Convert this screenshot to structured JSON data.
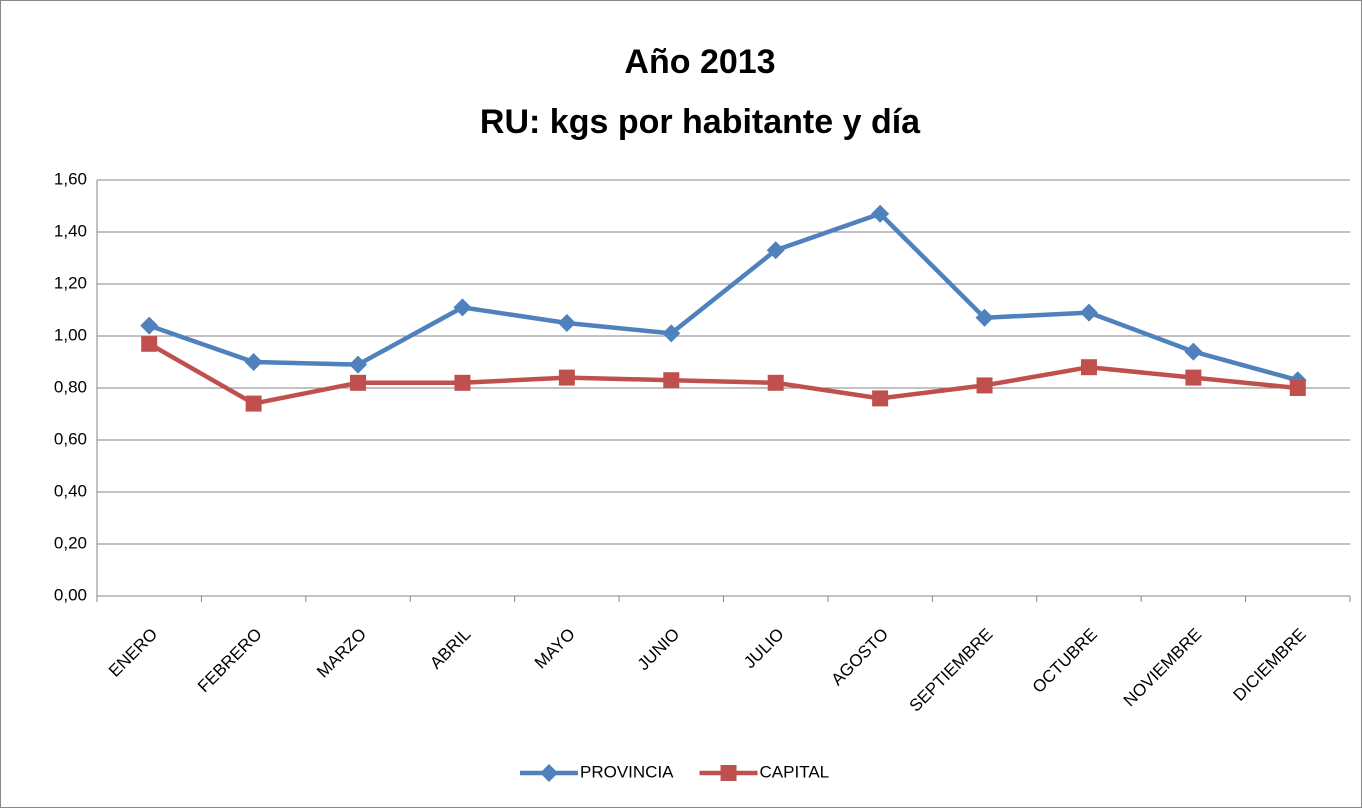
{
  "chart_data": {
    "type": "line",
    "title": [
      "Año 2013",
      "RU: kgs por habitante y día"
    ],
    "categories": [
      "ENERO",
      "FEBRERO",
      "MARZO",
      "ABRIL",
      "MAYO",
      "JUNIO",
      "JULIO",
      "AGOSTO",
      "SEPTIEMBRE",
      "OCTUBRE",
      "NOVIEMBRE",
      "DICIEMBRE"
    ],
    "series": [
      {
        "name": "PROVINCIA",
        "color": "#4f81bd",
        "marker": "diamond",
        "values": [
          1.04,
          0.9,
          0.89,
          1.11,
          1.05,
          1.01,
          1.33,
          1.47,
          1.07,
          1.09,
          0.94,
          0.83
        ]
      },
      {
        "name": "CAPITAL",
        "color": "#c0504d",
        "marker": "square",
        "values": [
          0.97,
          0.74,
          0.82,
          0.82,
          0.84,
          0.83,
          0.82,
          0.76,
          0.81,
          0.88,
          0.84,
          0.8
        ]
      }
    ],
    "ylim": [
      0,
      1.6
    ],
    "yticks": [
      {
        "value": 0,
        "label": "0,00"
      },
      {
        "value": 0.2,
        "label": "0,20"
      },
      {
        "value": 0.4,
        "label": "0,40"
      },
      {
        "value": 0.6,
        "label": "0,60"
      },
      {
        "value": 0.8,
        "label": "0,80"
      },
      {
        "value": 1.0,
        "label": "1,00"
      },
      {
        "value": 1.2,
        "label": "1,20"
      },
      {
        "value": 1.4,
        "label": "1,40"
      },
      {
        "value": 1.6,
        "label": "1,60"
      }
    ],
    "grid": true,
    "legend": "bottom"
  }
}
